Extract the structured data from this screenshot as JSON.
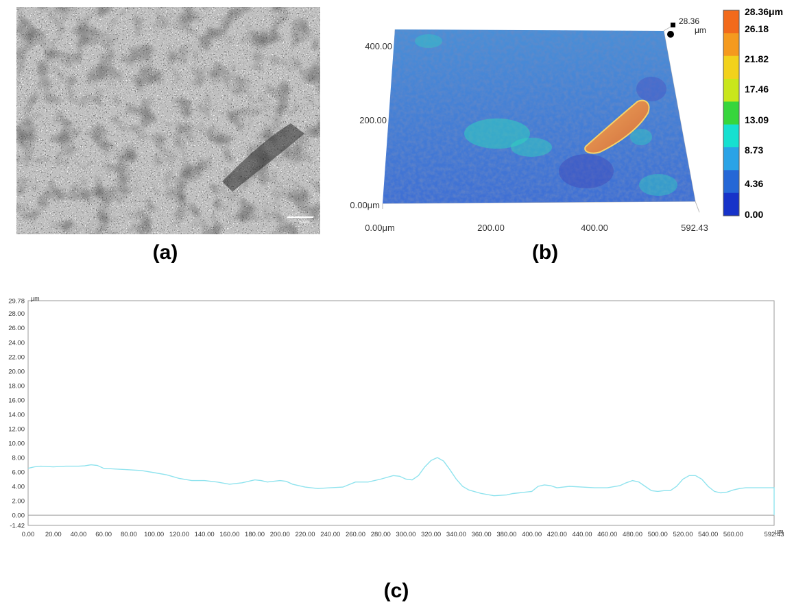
{
  "figure": {
    "caption_a": "(a)",
    "caption_b": "(b)",
    "caption_c": "(c)"
  },
  "micrograph": {
    "scale_bar_label": "50μm"
  },
  "surface_3d": {
    "y_ticks": [
      "400.00",
      "200.00",
      "0.00μm"
    ],
    "x_ticks": [
      "0.00μm",
      "200.00",
      "400.00",
      "592.43"
    ],
    "z_max_value": "28.36",
    "z_unit": "μm",
    "colorbar_labels": [
      "28.36μm",
      "26.18",
      "21.82",
      "17.46",
      "13.09",
      "8.73",
      "4.36",
      "0.00"
    ],
    "colorbar_colors": [
      "#f26a1b",
      "#f59a1e",
      "#f2d21c",
      "#c9e61c",
      "#37d63c",
      "#16e0d0",
      "#2aa3e6",
      "#2567d6",
      "#1733c9"
    ]
  },
  "chart_data": {
    "type": "line",
    "title": "",
    "xlabel": "μm",
    "ylabel": "μm",
    "xlim": [
      0,
      592.43
    ],
    "ylim": [
      -1.42,
      29.78
    ],
    "x_tick_labels": [
      "0.00",
      "20.00",
      "40.00",
      "60.00",
      "80.00",
      "100.00",
      "120.00",
      "140.00",
      "160.00",
      "180.00",
      "200.00",
      "220.00",
      "240.00",
      "260.00",
      "280.00",
      "300.00",
      "320.00",
      "340.00",
      "360.00",
      "380.00",
      "400.00",
      "420.00",
      "440.00",
      "460.00",
      "480.00",
      "500.00",
      "520.00",
      "540.00",
      "560.00",
      "592.43"
    ],
    "x_tick_values": [
      0,
      20,
      40,
      60,
      80,
      100,
      120,
      140,
      160,
      180,
      200,
      220,
      240,
      260,
      280,
      300,
      320,
      340,
      360,
      380,
      400,
      420,
      440,
      460,
      480,
      500,
      520,
      540,
      560,
      592.43
    ],
    "y_tick_labels": [
      "29.78",
      "28.00",
      "26.00",
      "24.00",
      "22.00",
      "20.00",
      "18.00",
      "16.00",
      "14.00",
      "12.00",
      "10.00",
      "8.00",
      "6.00",
      "4.00",
      "2.00",
      "0.00",
      "-1.42"
    ],
    "y_tick_values": [
      29.78,
      28,
      26,
      24,
      22,
      20,
      18,
      16,
      14,
      12,
      10,
      8,
      6,
      4,
      2,
      0,
      -1.42
    ],
    "series_color": "#8fe3ee",
    "x": [
      0,
      5,
      10,
      20,
      30,
      40,
      45,
      50,
      55,
      60,
      70,
      80,
      90,
      100,
      110,
      120,
      130,
      140,
      150,
      160,
      170,
      180,
      185,
      190,
      200,
      205,
      210,
      220,
      230,
      240,
      250,
      260,
      270,
      280,
      290,
      295,
      300,
      305,
      310,
      315,
      320,
      325,
      330,
      335,
      340,
      345,
      350,
      360,
      370,
      380,
      385,
      390,
      400,
      405,
      410,
      415,
      420,
      425,
      430,
      440,
      450,
      460,
      470,
      475,
      480,
      485,
      490,
      495,
      500,
      505,
      510,
      515,
      520,
      525,
      530,
      535,
      540,
      545,
      550,
      555,
      560,
      565,
      570,
      580,
      590,
      592.43
    ],
    "y": [
      6.5,
      6.7,
      6.8,
      6.7,
      6.8,
      6.8,
      6.85,
      7.0,
      6.9,
      6.5,
      6.4,
      6.3,
      6.2,
      5.9,
      5.6,
      5.1,
      4.8,
      4.8,
      4.6,
      4.3,
      4.5,
      4.9,
      4.8,
      4.6,
      4.8,
      4.7,
      4.3,
      3.9,
      3.7,
      3.8,
      3.9,
      4.6,
      4.6,
      5.0,
      5.5,
      5.4,
      5.0,
      4.9,
      5.5,
      6.7,
      7.6,
      8.0,
      7.5,
      6.3,
      5.0,
      4.0,
      3.5,
      3.0,
      2.7,
      2.8,
      3.0,
      3.1,
      3.3,
      4.0,
      4.2,
      4.1,
      3.8,
      3.9,
      4.0,
      3.9,
      3.8,
      3.8,
      4.1,
      4.5,
      4.8,
      4.6,
      4.0,
      3.4,
      3.3,
      3.4,
      3.4,
      4.0,
      5.0,
      5.5,
      5.5,
      5.0,
      4.0,
      3.3,
      3.1,
      3.2,
      3.5,
      3.7,
      3.8,
      3.8,
      3.8,
      3.8
    ]
  }
}
